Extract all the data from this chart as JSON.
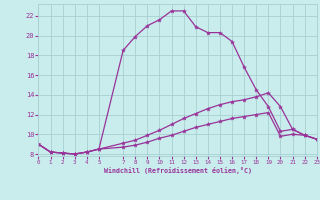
{
  "xlabel": "Windchill (Refroidissement éolien,°C)",
  "x_ticks": [
    0,
    1,
    2,
    3,
    4,
    5,
    7,
    8,
    9,
    10,
    11,
    12,
    13,
    14,
    15,
    16,
    17,
    18,
    19,
    20,
    21,
    22,
    23
  ],
  "x_tick_labels": [
    "0",
    "1",
    "2",
    "3",
    "4",
    "5",
    "7",
    "8",
    "9",
    "10",
    "11",
    "12",
    "13",
    "14",
    "15",
    "16",
    "17",
    "18",
    "19",
    "20",
    "21",
    "22",
    "23"
  ],
  "y_ticks": [
    8,
    10,
    12,
    14,
    16,
    18,
    20,
    22
  ],
  "xlim": [
    0,
    23
  ],
  "ylim": [
    7.8,
    23.2
  ],
  "bg_color": "#c9ecec",
  "grid_color": "#a8d0d0",
  "line_color": "#993399",
  "line1_x": [
    0,
    1,
    2,
    3,
    4,
    5,
    7,
    8,
    9,
    10,
    11,
    12,
    13,
    14,
    15,
    16,
    17,
    18,
    19,
    20,
    21,
    22,
    23
  ],
  "line1_y": [
    9.0,
    8.2,
    8.1,
    8.0,
    8.2,
    8.5,
    18.5,
    19.9,
    21.0,
    21.6,
    22.5,
    22.5,
    20.9,
    20.3,
    20.3,
    19.4,
    16.8,
    14.5,
    12.8,
    10.3,
    10.5,
    9.9,
    9.5
  ],
  "line2_x": [
    0,
    1,
    2,
    3,
    4,
    5,
    7,
    8,
    9,
    10,
    11,
    12,
    13,
    14,
    15,
    16,
    17,
    18,
    19,
    20,
    21,
    22,
    23
  ],
  "line2_y": [
    9.0,
    8.2,
    8.1,
    8.0,
    8.2,
    8.5,
    9.1,
    9.4,
    9.9,
    10.4,
    11.0,
    11.6,
    12.1,
    12.6,
    13.0,
    13.3,
    13.5,
    13.8,
    14.2,
    12.8,
    10.5,
    9.9,
    9.5
  ],
  "line3_x": [
    0,
    1,
    2,
    3,
    4,
    5,
    7,
    8,
    9,
    10,
    11,
    12,
    13,
    14,
    15,
    16,
    17,
    18,
    19,
    20,
    21,
    22,
    23
  ],
  "line3_y": [
    9.0,
    8.2,
    8.1,
    8.0,
    8.2,
    8.5,
    8.7,
    8.9,
    9.2,
    9.6,
    9.9,
    10.3,
    10.7,
    11.0,
    11.3,
    11.6,
    11.8,
    12.0,
    12.2,
    9.8,
    10.0,
    9.9,
    9.5
  ],
  "marker": "*",
  "markersize": 3,
  "linewidth": 0.9
}
